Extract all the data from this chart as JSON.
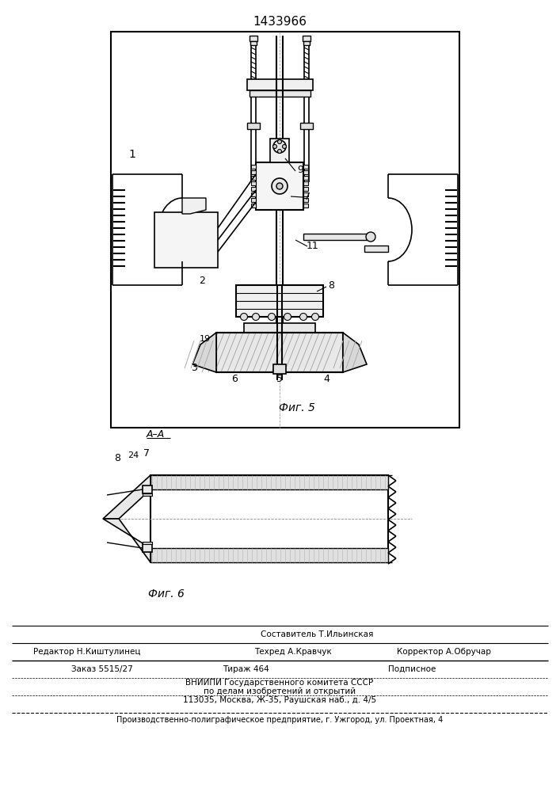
{
  "patent_number": "1433966",
  "background_color": "#ffffff",
  "line_color": "#000000",
  "fig_width": 7.07,
  "fig_height": 10.0,
  "fig5_label": "Фиг. 5",
  "fig6_label": "Фиг. 6",
  "aa_label": "A–A",
  "footer_line0_center": "Составитель Т.Ильинская",
  "footer_line1_left": "Редактор Н.Киштулинец",
  "footer_line1_center": "Техред А.Кравчук",
  "footer_line1_right": "Корректор А.Обручар",
  "footer_zakaz": "Заказ 5515/27",
  "footer_tirazh": "Тираж 464",
  "footer_podpisnoe": "Подписное",
  "footer_vniip1": "ВНИИПИ Государственного комитета СССР",
  "footer_vniip2": "по делам изобретений и открытий",
  "footer_vniip3": "113035, Москва, Ж-35, Раушская наб., д. 4/5",
  "footer_last": "Производственно-полиграфическое предприятие, г. Ужгород, ул. Проектная, 4"
}
